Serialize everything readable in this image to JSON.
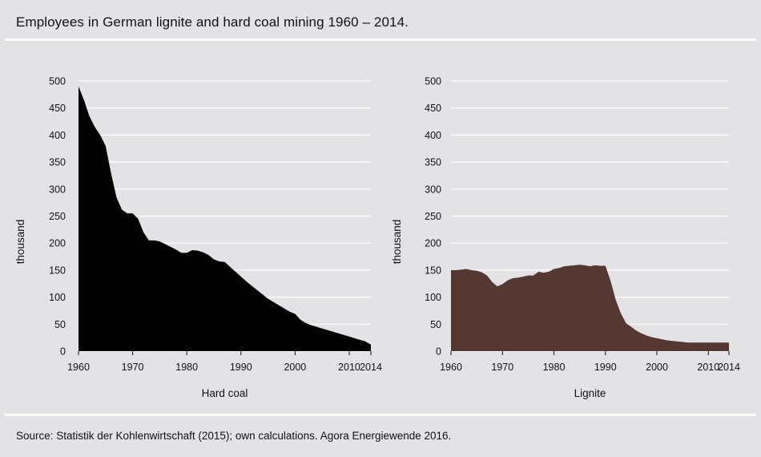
{
  "header": {
    "title": "Employees in German lignite and hard coal mining 1960 – 2014."
  },
  "footer": {
    "source": "Source: Statistik der Kohlenwirtschaft (2015); own calculations. Agora Energiewende 2016."
  },
  "chart_data": [
    {
      "type": "area",
      "xlabel": "Hard coal",
      "ylabel": "thousand",
      "color": "#000000",
      "xlim": [
        1960,
        2014
      ],
      "ylim": [
        0,
        500
      ],
      "grid": true,
      "x_ticks": [
        1960,
        1970,
        1980,
        1990,
        2000,
        2010,
        2014
      ],
      "y_ticks": [
        0,
        50,
        100,
        150,
        200,
        250,
        300,
        350,
        400,
        450,
        500
      ],
      "x": [
        1960,
        1961,
        1962,
        1963,
        1964,
        1965,
        1966,
        1967,
        1968,
        1969,
        1970,
        1971,
        1972,
        1973,
        1974,
        1975,
        1976,
        1977,
        1978,
        1979,
        1980,
        1981,
        1982,
        1983,
        1984,
        1985,
        1986,
        1987,
        1988,
        1989,
        1990,
        1991,
        1992,
        1993,
        1994,
        1995,
        1996,
        1997,
        1998,
        1999,
        2000,
        2001,
        2002,
        2003,
        2004,
        2005,
        2006,
        2007,
        2008,
        2009,
        2010,
        2011,
        2012,
        2013,
        2014
      ],
      "values": [
        490,
        465,
        435,
        415,
        400,
        380,
        330,
        285,
        262,
        255,
        255,
        245,
        220,
        205,
        205,
        203,
        198,
        193,
        188,
        182,
        182,
        187,
        186,
        183,
        178,
        170,
        166,
        165,
        156,
        147,
        138,
        129,
        121,
        113,
        105,
        97,
        91,
        85,
        79,
        73,
        69,
        58,
        52,
        48,
        45,
        42,
        39,
        36,
        33,
        30,
        27,
        24,
        21,
        18,
        12
      ]
    },
    {
      "type": "area",
      "xlabel": "Lignite",
      "ylabel": "thousand",
      "color": "#553832",
      "xlim": [
        1960,
        2014
      ],
      "ylim": [
        0,
        500
      ],
      "grid": true,
      "x_ticks": [
        1960,
        1970,
        1980,
        1990,
        2000,
        2010,
        2014
      ],
      "y_ticks": [
        0,
        50,
        100,
        150,
        200,
        250,
        300,
        350,
        400,
        450,
        500
      ],
      "x": [
        1960,
        1961,
        1962,
        1963,
        1964,
        1965,
        1966,
        1967,
        1968,
        1969,
        1970,
        1971,
        1972,
        1973,
        1974,
        1975,
        1976,
        1977,
        1978,
        1979,
        1980,
        1981,
        1982,
        1983,
        1984,
        1985,
        1986,
        1987,
        1988,
        1989,
        1990,
        1991,
        1992,
        1993,
        1994,
        1995,
        1996,
        1997,
        1998,
        1999,
        2000,
        2001,
        2002,
        2003,
        2004,
        2005,
        2006,
        2007,
        2008,
        2009,
        2010,
        2011,
        2012,
        2013,
        2014
      ],
      "values": [
        150,
        150,
        151,
        152,
        150,
        149,
        146,
        140,
        128,
        120,
        124,
        131,
        135,
        136,
        138,
        140,
        140,
        147,
        145,
        147,
        152,
        154,
        157,
        158,
        159,
        160,
        159,
        157,
        159,
        158,
        158,
        130,
        95,
        70,
        52,
        45,
        38,
        33,
        29,
        26,
        24,
        22,
        20,
        19,
        18,
        17,
        16,
        16,
        16,
        16,
        16,
        16,
        16,
        16,
        16
      ]
    }
  ]
}
